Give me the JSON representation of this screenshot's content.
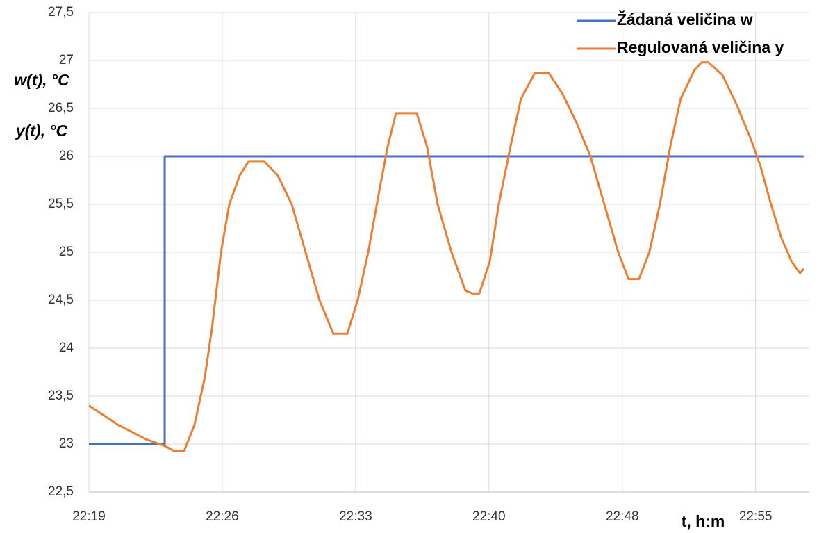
{
  "chart_data": {
    "type": "line",
    "y_labels": [
      "w(t), °C",
      "y(t), °C"
    ],
    "x_label": "t, h:m",
    "xlim": [
      0,
      38.9
    ],
    "xticks": [
      {
        "value": 0,
        "label": "22:19"
      },
      {
        "value": 7.2,
        "label": "22:26"
      },
      {
        "value": 14.4,
        "label": "22:33"
      },
      {
        "value": 21.6,
        "label": "22:40"
      },
      {
        "value": 28.8,
        "label": "22:48"
      },
      {
        "value": 36,
        "label": "22:55"
      }
    ],
    "ylim": [
      22.5,
      27.5
    ],
    "yticks": [
      {
        "value": 22.5,
        "label": "22,5"
      },
      23,
      {
        "value": 23.5,
        "label": "23,5"
      },
      24,
      {
        "value": 24.5,
        "label": "24,5"
      },
      25,
      {
        "value": 25.5,
        "label": "25,5"
      },
      26,
      {
        "value": 26.5,
        "label": "26,5"
      },
      27,
      {
        "value": 27.5,
        "label": "27,5"
      }
    ],
    "grid": true,
    "legend": "top-right",
    "series": [
      {
        "name": "Žádaná veličina w",
        "color": "#4472c4",
        "x": [
          0,
          4.09,
          4.09,
          38.59
        ],
        "values": [
          23,
          23,
          26,
          26
        ]
      },
      {
        "name": "Regulovaná veličina y",
        "color": "#ed7d31",
        "x": [
          0,
          1.58,
          3.08,
          4.09,
          4.58,
          5.14,
          5.7,
          6.26,
          6.64,
          7.13,
          7.58,
          8.14,
          8.63,
          9.45,
          10.2,
          10.95,
          11.7,
          12.45,
          13.2,
          13.95,
          14.51,
          15.08,
          15.64,
          16.13,
          16.58,
          17.7,
          18.26,
          18.83,
          19.58,
          20.33,
          20.7,
          21.08,
          21.64,
          22.13,
          22.76,
          23.33,
          24.08,
          24.83,
          25.58,
          26.33,
          27.08,
          27.83,
          28.58,
          29.14,
          29.7,
          30.26,
          30.83,
          31.39,
          31.95,
          32.7,
          33.08,
          33.45,
          34.2,
          34.95,
          35.7,
          36.26,
          36.83,
          37.39,
          37.95,
          38.4,
          38.59
        ],
        "values": [
          23.4,
          23.2,
          23.05,
          22.98,
          22.93,
          22.93,
          23.2,
          23.7,
          24.2,
          25.0,
          25.5,
          25.8,
          25.95,
          25.95,
          25.8,
          25.5,
          25.0,
          24.5,
          24.15,
          24.15,
          24.5,
          25.0,
          25.6,
          26.1,
          26.45,
          26.45,
          26.1,
          25.5,
          25.0,
          24.6,
          24.57,
          24.57,
          24.9,
          25.5,
          26.1,
          26.6,
          26.87,
          26.87,
          26.65,
          26.35,
          26.0,
          25.5,
          25.0,
          24.72,
          24.72,
          25.0,
          25.5,
          26.1,
          26.6,
          26.9,
          26.98,
          26.98,
          26.85,
          26.55,
          26.2,
          25.9,
          25.5,
          25.15,
          24.9,
          24.78,
          24.83
        ]
      }
    ]
  }
}
